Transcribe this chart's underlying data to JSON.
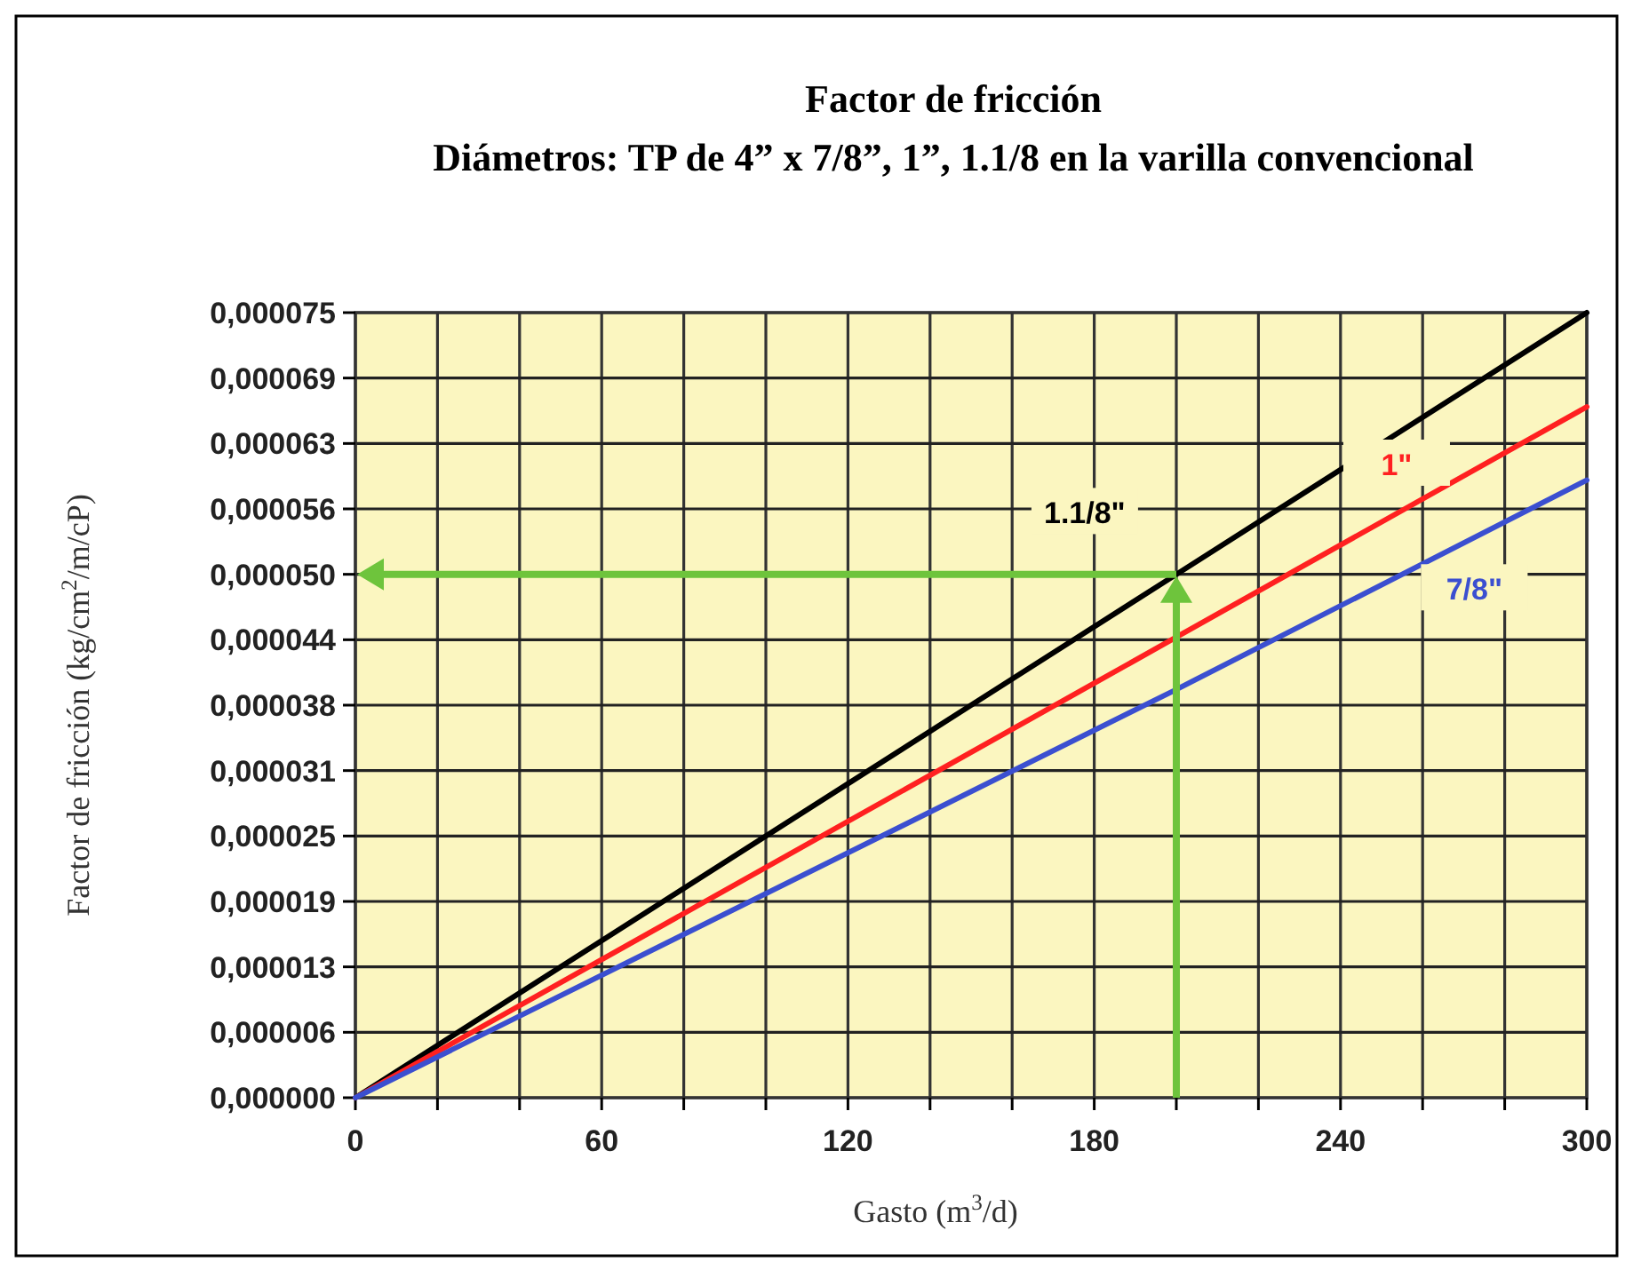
{
  "chart_data": {
    "type": "line",
    "title": "Factor de fricción",
    "subtitle": "Diámetros: TP de 4” x 7/8”, 1”, 1.1/8 en la varilla convencional",
    "xlabel": "Gasto (m$^{3}$/d)",
    "ylabel": "Factor de fricción (kg/cm$^{2}$/m/cP)",
    "x": [
      0,
      200,
      300
    ],
    "series": [
      {
        "name": "1.1/8\"",
        "color": "#000000",
        "values": [
          0,
          5e-05,
          7.5e-05
        ]
      },
      {
        "name": "1\"",
        "color": "#ff2020",
        "values": [
          0,
          4.4e-05,
          6.6e-05
        ]
      },
      {
        "name": "7/8\"",
        "color": "#3b4fd0",
        "values": [
          0,
          3.9e-05,
          5.9e-05
        ]
      }
    ],
    "xlim": [
      0,
      300
    ],
    "xticks": [
      0,
      {
        "value": 20,
        "label": null
      },
      {
        "value": 40,
        "label": null
      },
      60,
      {
        "value": 80,
        "label": null
      },
      {
        "value": 100,
        "label": null
      },
      120,
      {
        "value": 140,
        "label": null
      },
      {
        "value": 160,
        "label": null
      },
      180,
      {
        "value": 200,
        "label": null
      },
      {
        "value": 220,
        "label": null
      },
      240,
      {
        "value": 260,
        "label": null
      },
      {
        "value": 280,
        "label": null
      },
      300
    ],
    "ylim": [
      0,
      7.5e-05
    ],
    "yticks": [
      {
        "value": 0,
        "label": "0,000000"
      },
      {
        "value": 6.25e-06,
        "label": "0,000006"
      },
      {
        "value": 1.25e-05,
        "label": "0,000013"
      },
      {
        "value": 1.875e-05,
        "label": "0,000019"
      },
      {
        "value": 2.5e-05,
        "label": "0,000025"
      },
      {
        "value": 3.125e-05,
        "label": "0,000031"
      },
      {
        "value": 3.75e-05,
        "label": "0,000038"
      },
      {
        "value": 4.375e-05,
        "label": "0,000044"
      },
      {
        "value": 5e-05,
        "label": "0,000050"
      },
      {
        "value": 5.625e-05,
        "label": "0,000056"
      },
      {
        "value": 6.25e-05,
        "label": "0,000063"
      },
      {
        "value": 6.875e-05,
        "label": "0,000069"
      },
      {
        "value": 7.5e-05,
        "label": "0,000075"
      }
    ],
    "grid": true,
    "marker": "none",
    "line_style": "solid"
  }
}
